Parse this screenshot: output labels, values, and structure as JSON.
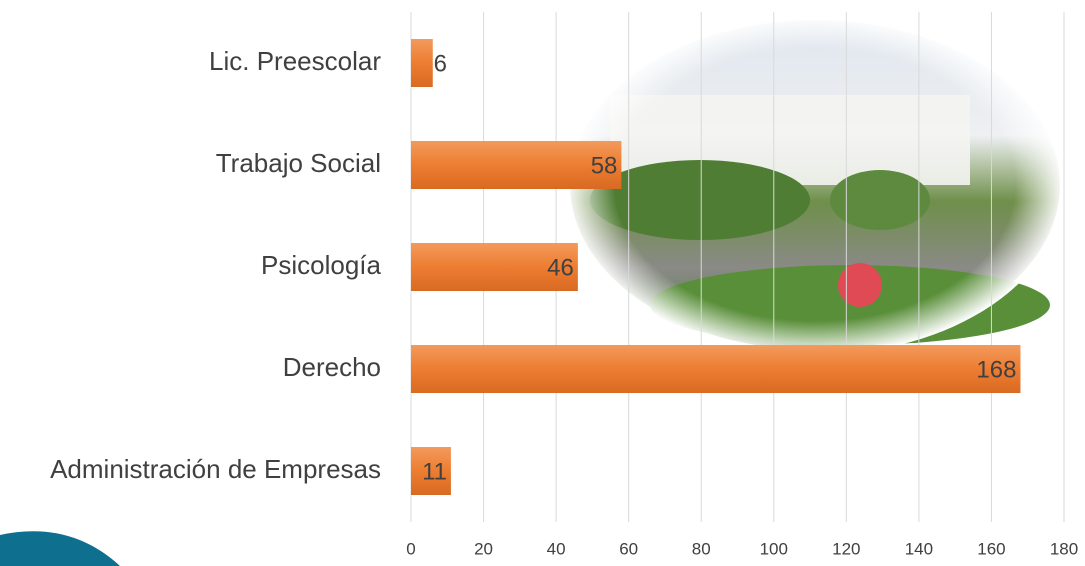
{
  "chart_data": {
    "type": "bar",
    "orientation": "horizontal",
    "categories": [
      "Lic. Preescolar",
      "Trabajo Social",
      "Psicología",
      "Derecho",
      "Administración de Empresas"
    ],
    "values": [
      6,
      58,
      46,
      168,
      11
    ],
    "color": "#ed7d31",
    "xlim": [
      0,
      180
    ],
    "xticks": [
      0,
      20,
      40,
      60,
      80,
      100,
      120,
      140,
      160,
      180
    ],
    "grid": true
  }
}
